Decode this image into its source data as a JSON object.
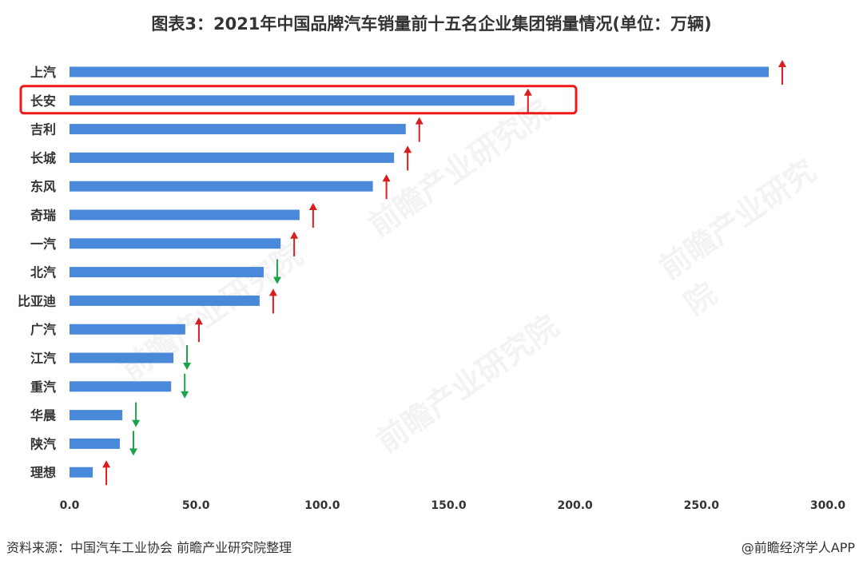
{
  "chart_data": {
    "type": "bar",
    "orientation": "horizontal",
    "title": "图表3：2021年中国品牌汽车销量前十五名企业集团销量情况(单位：万辆)",
    "xlabel": "",
    "ylabel": "",
    "xlim": [
      0,
      300
    ],
    "x_ticks": [
      "0.0",
      "50.0",
      "100.0",
      "150.0",
      "200.0",
      "250.0",
      "300.0"
    ],
    "categories": [
      "上汽",
      "长安",
      "吉利",
      "长城",
      "东风",
      "奇瑞",
      "一汽",
      "北汽",
      "比亚迪",
      "广汽",
      "江汽",
      "重汽",
      "华晨",
      "陕汽",
      "理想"
    ],
    "values": [
      276.6,
      176.0,
      133.0,
      128.4,
      120.0,
      91.0,
      83.5,
      76.8,
      75.2,
      45.8,
      41.1,
      40.2,
      20.9,
      19.9,
      9.2
    ],
    "trend": [
      "up",
      "up",
      "up",
      "up",
      "up",
      "up",
      "up",
      "down",
      "up",
      "up",
      "down",
      "down",
      "down",
      "down",
      "up"
    ],
    "highlighted": "长安",
    "bar_color": "#4a88da",
    "up_color": "#d81e1e",
    "down_color": "#1aa34a",
    "highlight_color": "#f01818",
    "grid": false,
    "legend": "none"
  },
  "source": "资料来源：中国汽车工业协会 前瞻产业研究院整理",
  "credit": "@前瞻经济学人APP",
  "watermark": "前瞻产业研究院"
}
